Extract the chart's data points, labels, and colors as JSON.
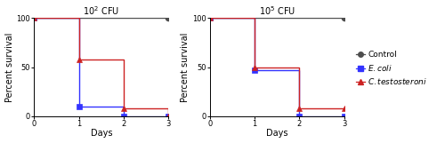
{
  "left_title": "$10^2$ CFU",
  "right_title": "$10^5$ CFU",
  "ylabel": "Percent survival",
  "xlabel": "Days",
  "ylim": [
    0,
    100
  ],
  "xlim": [
    0,
    3
  ],
  "yticks": [
    0,
    50,
    100
  ],
  "xticks": [
    0,
    1,
    2,
    3
  ],
  "left": {
    "control": {
      "x": [
        0,
        3
      ],
      "y": [
        100,
        100
      ]
    },
    "ecoli": {
      "x": [
        0,
        1,
        2,
        3
      ],
      "y": [
        100,
        10,
        0,
        0
      ]
    },
    "ctest": {
      "x": [
        0,
        1,
        2,
        3
      ],
      "y": [
        100,
        58,
        8,
        0
      ]
    }
  },
  "right": {
    "control": {
      "x": [
        0,
        3
      ],
      "y": [
        100,
        100
      ]
    },
    "ecoli": {
      "x": [
        0,
        1,
        2,
        3
      ],
      "y": [
        100,
        47,
        0,
        0
      ]
    },
    "ctest": {
      "x": [
        0,
        1,
        2,
        3
      ],
      "y": [
        100,
        50,
        8,
        8
      ]
    }
  },
  "control_color": "#4d4d4d",
  "ecoli_color": "#3333FF",
  "ctest_color": "#CC2222",
  "linewidth": 1.0,
  "markersize": 4.5,
  "bg_color": "#ffffff",
  "fontsize": 7,
  "legend_fontsize": 6.5
}
